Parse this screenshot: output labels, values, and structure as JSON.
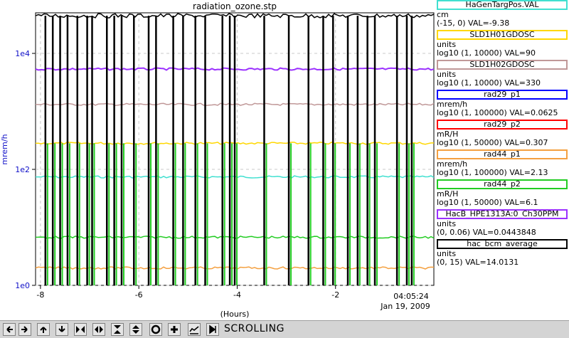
{
  "title": "radiation_ozone.stp",
  "chart_data": {
    "type": "line",
    "title": "radiation_ozone.stp",
    "xlabel": "(Hours)",
    "ylabel": "mrem/h",
    "x_ticks": [
      "-8",
      "-6",
      "-4",
      "-2"
    ],
    "y_ticks": [
      "1e0",
      "1e2",
      "1e4"
    ],
    "xlim": [
      -8.1,
      0
    ],
    "ylim_log10": [
      0,
      4.7
    ],
    "y_scale": "log",
    "grid": true,
    "timestamp_time": "04:05:24",
    "timestamp_date": "Jan 19, 2009",
    "series": [
      {
        "name": "HaGenTargPos.VAL",
        "color": "#40e0d0",
        "level": 1.87
      },
      {
        "name": "SLD1H01GDOSC",
        "color": "#ffd700",
        "level": 2.45
      },
      {
        "name": "SLD1H02GDOSC",
        "color": "#c09898",
        "level": 3.12
      },
      {
        "name": "HacB_HPE1313A:0_Ch30PPM",
        "color": "#9b30ff",
        "level": 3.73
      },
      {
        "name": "hac_bcm_average",
        "color": "#000000",
        "level": 4.65
      },
      {
        "name": "rad44_p2",
        "color": "#22cc22",
        "level": 0.83
      },
      {
        "name": "rad44_p1",
        "color": "#f4a040",
        "level": 0.3
      }
    ]
  },
  "legend": [
    {
      "name": "HaGenTargPos.VAL",
      "color": "#40e0d0",
      "unit": "cm",
      "range": "(-15, 0) VAL=-9.38"
    },
    {
      "name": "SLD1H01GDOSC",
      "color": "#ffd700",
      "unit": "units",
      "range": "log10 (1, 10000) VAL=90"
    },
    {
      "name": "SLD1H02GDOSC",
      "color": "#c09898",
      "unit": "units",
      "range": "log10 (1, 10000) VAL=330"
    },
    {
      "name": "rad29_p1",
      "color": "#0000ff",
      "unit": "mrem/h",
      "range": "log10 (1, 100000) VAL=0.0625"
    },
    {
      "name": "rad29_p2",
      "color": "#ff0000",
      "unit": "mR/H",
      "range": "log10 (1, 50000) VAL=0.307"
    },
    {
      "name": "rad44_p1",
      "color": "#f4a040",
      "unit": "mrem/h",
      "range": "log10 (1, 100000) VAL=2.13"
    },
    {
      "name": "rad44_p2",
      "color": "#22cc22",
      "unit": "mR/H",
      "range": "log10 (1, 50000) VAL=6.1"
    },
    {
      "name": "HacB_HPE1313A:0_Ch30PPM",
      "color": "#9b30ff",
      "unit": "units",
      "range": "(0, 0.06) VAL=0.0443848"
    },
    {
      "name": "hac_bcm_average",
      "color": "#000000",
      "unit": "units",
      "range": "(0, 15) VAL=14.0131"
    }
  ],
  "toolbar": {
    "status": "SCROLLING",
    "buttons": [
      {
        "name": "scroll-left-button",
        "icon": "arrow-left-icon"
      },
      {
        "name": "scroll-right-button",
        "icon": "arrow-right-icon"
      },
      {
        "name": "scroll-up-button",
        "icon": "arrow-up-icon"
      },
      {
        "name": "scroll-down-button",
        "icon": "arrow-down-icon"
      },
      {
        "name": "zoom-x-in-button",
        "icon": "zoom-x-in-icon"
      },
      {
        "name": "zoom-x-out-button",
        "icon": "zoom-x-out-icon"
      },
      {
        "name": "zoom-y-in-button",
        "icon": "zoom-y-in-icon"
      },
      {
        "name": "zoom-y-out-button",
        "icon": "zoom-y-out-icon"
      },
      {
        "name": "reset-button",
        "icon": "circle-icon"
      },
      {
        "name": "add-button",
        "icon": "plus-icon"
      },
      {
        "name": "chart-mode-button",
        "icon": "chart-icon"
      },
      {
        "name": "scroll-mode-button",
        "icon": "scroll-end-icon"
      }
    ]
  }
}
